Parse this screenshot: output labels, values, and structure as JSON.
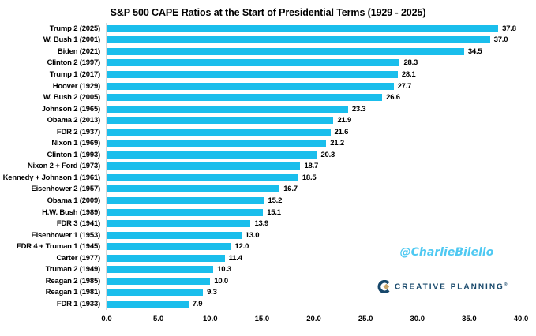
{
  "title": "S&P 500 CAPE Ratios at the Start of Presidential Terms (1929 - 2025)",
  "watermarks": {
    "author": "@CharlieBilello",
    "brand": "CREATIVE PLANNING",
    "brand_trademark": "®"
  },
  "colors": {
    "bar": "#1ABEEC",
    "author_text": "#4FC9F2",
    "brand_navy": "#17486B",
    "brand_gold": "#C9A66B",
    "axis_line": "#d9d9d9",
    "text": "#000000"
  },
  "chart_data": {
    "type": "bar",
    "orientation": "horizontal",
    "title": "S&P 500 CAPE Ratios at the Start of Presidential Terms (1929 - 2025)",
    "categories": [
      "Trump 2 (2025)",
      "W. Bush 1 (2001)",
      "Biden (2021)",
      "Clinton 2 (1997)",
      "Trump 1 (2017)",
      "Hoover (1929)",
      "W. Bush 2 (2005)",
      "Johnson 2 (1965)",
      "Obama 2 (2013)",
      "FDR 2 (1937)",
      "Nixon 1 (1969)",
      "Clinton 1 (1993)",
      "Nixon 2 + Ford (1973)",
      "Kennedy + Johnson 1 (1961)",
      "Eisenhower 2 (1957)",
      "Obama 1 (2009)",
      "H.W. Bush (1989)",
      "FDR 3 (1941)",
      "Eisenhower 1 (1953)",
      "FDR 4 + Truman 1 (1945)",
      "Carter (1977)",
      "Truman 2 (1949)",
      "Reagan 2 (1985)",
      "Reagan 1 (1981)",
      "FDR 1 (1933)"
    ],
    "values": [
      37.8,
      37.0,
      34.5,
      28.3,
      28.1,
      27.7,
      26.6,
      23.3,
      21.9,
      21.6,
      21.2,
      20.3,
      18.7,
      18.5,
      16.7,
      15.2,
      15.1,
      13.9,
      13.0,
      12.0,
      11.4,
      10.3,
      10.0,
      9.3,
      7.9
    ],
    "xlabel": "",
    "ylabel": "",
    "xlim": [
      0,
      40
    ],
    "x_ticks": [
      "0.0",
      "5.0",
      "10.0",
      "15.0",
      "20.0",
      "25.0",
      "30.0",
      "35.0",
      "40.0"
    ],
    "grid": false,
    "value_labels": true,
    "value_label_format": "one_decimal",
    "legend": false
  }
}
